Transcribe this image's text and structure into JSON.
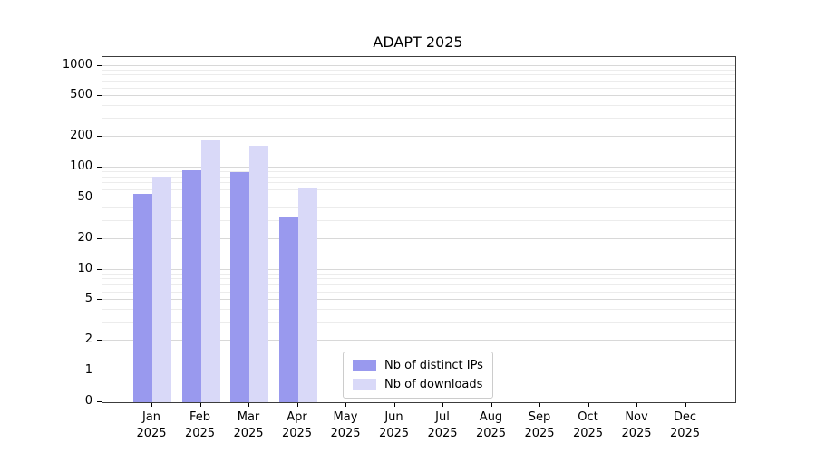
{
  "chart_data": {
    "type": "bar",
    "title": "ADAPT 2025",
    "x_months": [
      "Jan",
      "Feb",
      "Mar",
      "Apr",
      "May",
      "Jun",
      "Jul",
      "Aug",
      "Sep",
      "Oct",
      "Nov",
      "Dec"
    ],
    "x_year": "2025",
    "y_scale": "symlog",
    "y_ticks": [
      0,
      1,
      2,
      5,
      10,
      20,
      50,
      100,
      200,
      500,
      1000
    ],
    "ylim": [
      0,
      1200
    ],
    "grid": "horizontal",
    "legend_position": "lower center",
    "series": [
      {
        "key": "distinct-ips",
        "name": "Nb of distinct IPs",
        "color": "#9999ee",
        "values": [
          55,
          95,
          90,
          33,
          0,
          0,
          0,
          0,
          0,
          0,
          0,
          0
        ]
      },
      {
        "key": "downloads",
        "name": "Nb of downloads",
        "color": "#d9d9f8",
        "values": [
          82,
          190,
          165,
          62,
          0,
          0,
          0,
          0,
          0,
          0,
          0,
          0
        ]
      }
    ]
  }
}
